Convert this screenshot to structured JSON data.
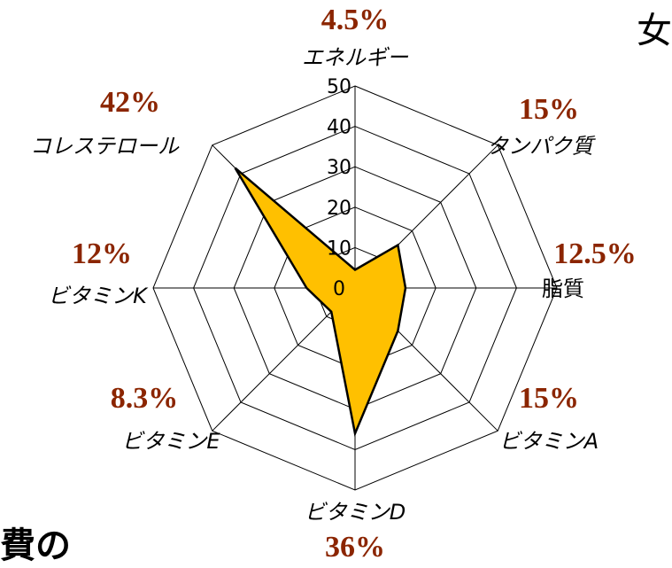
{
  "fragments": {
    "top_right": "女",
    "bottom_left": "費の"
  },
  "chart_data": {
    "type": "radar",
    "categories": [
      "エネルギー",
      "タンパク質",
      "脂質",
      "ビタミンA",
      "ビタミンD",
      "ビタミンE",
      "ビタミンK",
      "コレステロール"
    ],
    "values": [
      4.5,
      15,
      12.5,
      15,
      36,
      8.3,
      12,
      42
    ],
    "value_labels": [
      "4.5%",
      "15%",
      "12.5%",
      "15%",
      "36%",
      "8.3%",
      "12%",
      "42%"
    ],
    "ticks": [
      "0",
      "10",
      "20",
      "30",
      "40",
      "50"
    ],
    "rlim": [
      0,
      50
    ],
    "grid": true,
    "fill_color": "#ffc000",
    "line_color": "#000000",
    "label_color": "#8b2500"
  }
}
